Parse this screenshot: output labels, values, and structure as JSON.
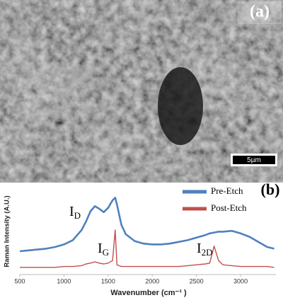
{
  "chart_data": {
    "type": "line",
    "panel_a_label": "(a)",
    "scale_bar": "5µm",
    "panel_b_label": "(b)",
    "x_label": "Wavenumber (cm⁻¹ )",
    "y_label": "Raman Intensity (A.U.)",
    "xlim": [
      500,
      3400
    ],
    "xticks": [
      500,
      1000,
      1500,
      2000,
      2500,
      3000
    ],
    "ylim": [
      0,
      100
    ],
    "x": [
      500,
      600,
      700,
      800,
      900,
      1000,
      1100,
      1200,
      1250,
      1300,
      1350,
      1400,
      1450,
      1500,
      1550,
      1580,
      1600,
      1650,
      1700,
      1800,
      1900,
      2000,
      2100,
      2200,
      2300,
      2400,
      2500,
      2600,
      2650,
      2700,
      2750,
      2800,
      2900,
      3000,
      3100,
      3200,
      3300,
      3380
    ],
    "series": [
      {
        "name": "Pre-Etch",
        "color": "#4f81bd",
        "values": [
          25,
          26,
          27,
          28,
          30,
          33,
          38,
          50,
          60,
          72,
          78,
          75,
          71,
          76,
          85,
          88,
          80,
          56,
          45,
          37,
          34,
          33,
          33,
          34,
          36,
          38,
          41,
          44,
          46,
          47,
          48,
          48,
          49,
          46,
          42,
          36,
          30,
          28
        ]
      },
      {
        "name": "Post-Etch",
        "color": "#c0504d",
        "values": [
          6,
          6,
          6,
          6,
          6,
          7,
          7,
          8,
          10,
          11,
          12.5,
          11,
          10,
          11,
          14,
          50,
          9,
          7,
          7,
          7,
          7,
          7,
          7,
          7,
          7,
          8,
          9,
          10,
          11,
          31,
          14,
          9,
          8,
          7,
          7,
          7,
          7,
          6
        ]
      }
    ],
    "annotations": [
      {
        "text": "I",
        "sub": "D"
      },
      {
        "text": "I",
        "sub": "G"
      },
      {
        "text": "I",
        "sub": "2D"
      }
    ]
  }
}
